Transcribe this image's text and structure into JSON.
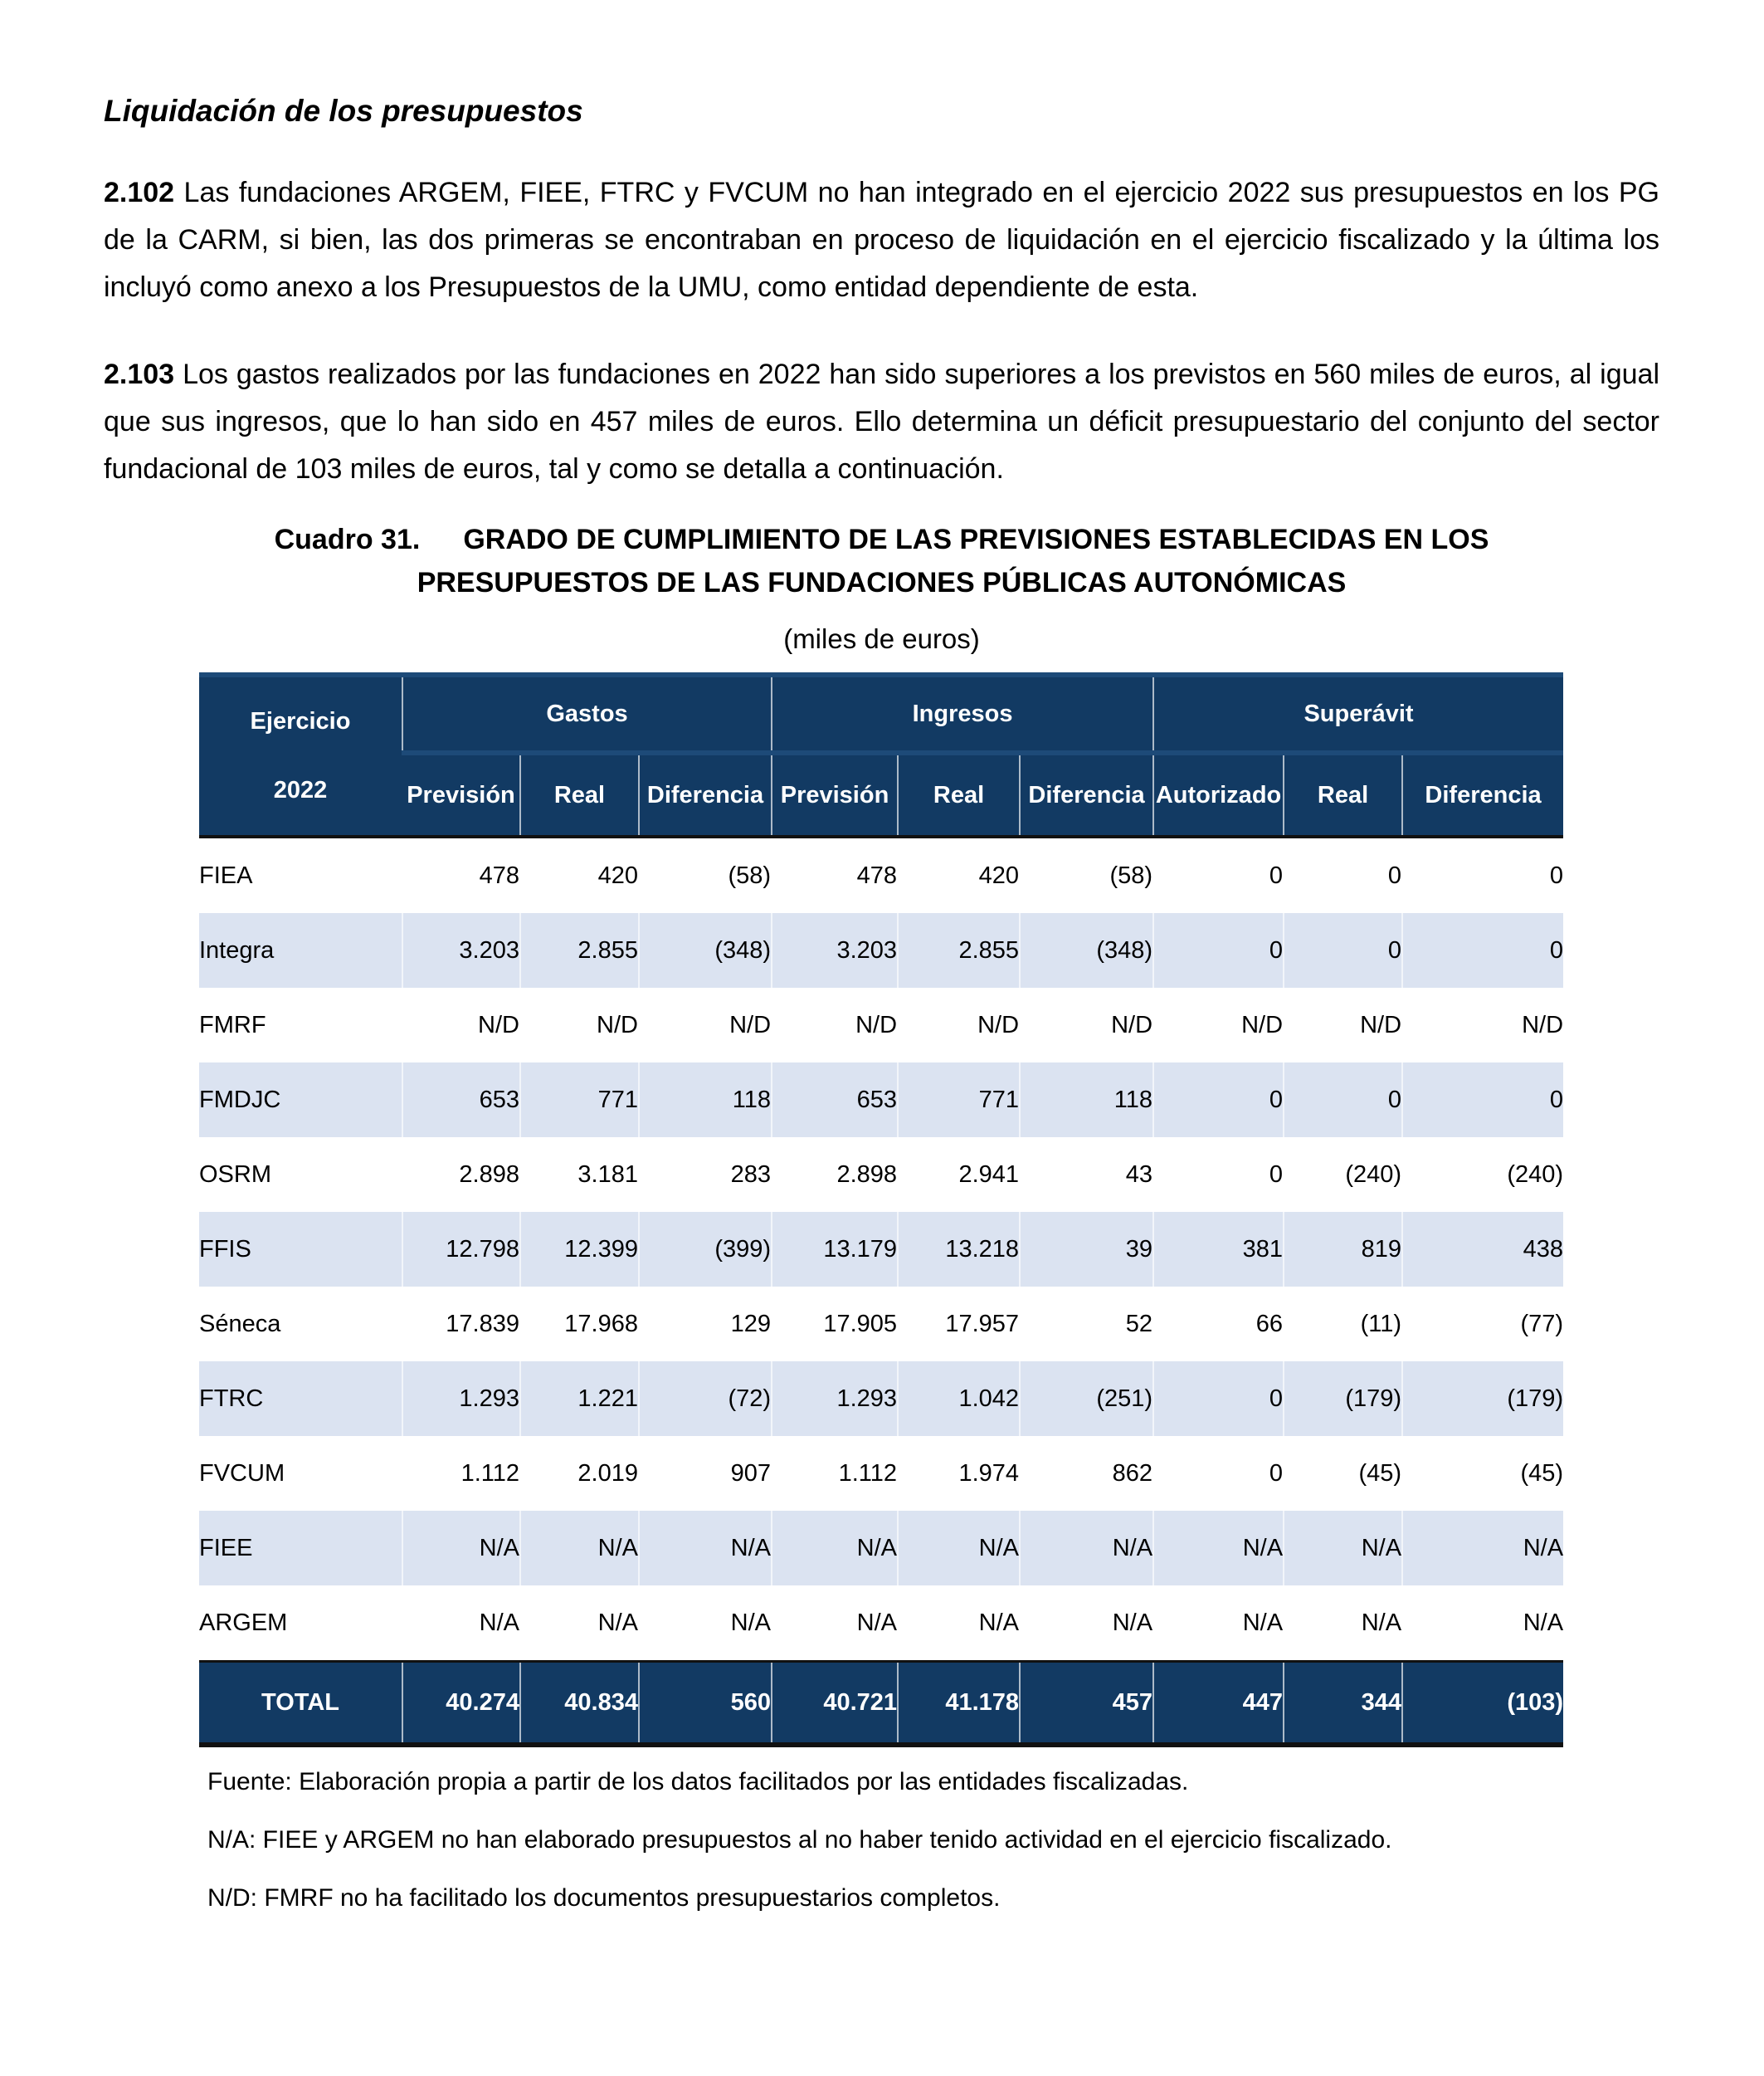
{
  "page": {
    "heading": "Liquidación de los presupuestos",
    "paragraphs": [
      {
        "number": "2.102",
        "text": "Las fundaciones ARGEM, FIEE, FTRC y FVCUM no han integrado en el ejercicio 2022 sus presupuestos en los PG de la CARM, si bien, las dos primeras se encontraban en proceso de liquidación en el ejercicio fiscalizado y la última los incluyó como anexo a los Presupuestos de la UMU, como entidad dependiente de esta."
      },
      {
        "number": "2.103",
        "text": "Los gastos realizados por las fundaciones en 2022 han sido superiores a los previstos en 560 miles de euros, al igual que sus ingresos, que lo han sido en 457 miles de euros. Ello determina un déficit presupuestario del conjunto del sector fundacional de 103 miles de euros, tal y como se detalla a continuación."
      }
    ],
    "table_caption": {
      "label": "Cuadro 31.",
      "line1": "GRADO DE CUMPLIMIENTO DE LAS PREVISIONES ESTABLECIDAS EN LOS",
      "line2": "PRESUPUESTOS DE LAS FUNDACIONES PÚBLICAS AUTONÓMICAS"
    },
    "units_note": "(miles de euros)"
  },
  "table": {
    "corner_header": [
      "Ejercicio",
      "2022"
    ],
    "groups": [
      {
        "label": "Gastos",
        "columns": [
          "Previsión",
          "Real",
          "Diferencia"
        ]
      },
      {
        "label": "Ingresos",
        "columns": [
          "Previsión",
          "Real",
          "Diferencia"
        ]
      },
      {
        "label": "Superávit",
        "columns": [
          "Autorizado",
          "Real",
          "Diferencia"
        ]
      }
    ],
    "rows": [
      {
        "entity": "FIEA",
        "values": [
          "478",
          "420",
          "(58)",
          "478",
          "420",
          "(58)",
          "0",
          "0",
          "0"
        ]
      },
      {
        "entity": "Integra",
        "values": [
          "3.203",
          "2.855",
          "(348)",
          "3.203",
          "2.855",
          "(348)",
          "0",
          "0",
          "0"
        ]
      },
      {
        "entity": "FMRF",
        "values": [
          "N/D",
          "N/D",
          "N/D",
          "N/D",
          "N/D",
          "N/D",
          "N/D",
          "N/D",
          "N/D"
        ]
      },
      {
        "entity": "FMDJC",
        "values": [
          "653",
          "771",
          "118",
          "653",
          "771",
          "118",
          "0",
          "0",
          "0"
        ]
      },
      {
        "entity": "OSRM",
        "values": [
          "2.898",
          "3.181",
          "283",
          "2.898",
          "2.941",
          "43",
          "0",
          "(240)",
          "(240)"
        ]
      },
      {
        "entity": "FFIS",
        "values": [
          "12.798",
          "12.399",
          "(399)",
          "13.179",
          "13.218",
          "39",
          "381",
          "819",
          "438"
        ]
      },
      {
        "entity": "Séneca",
        "values": [
          "17.839",
          "17.968",
          "129",
          "17.905",
          "17.957",
          "52",
          "66",
          "(11)",
          "(77)"
        ]
      },
      {
        "entity": "FTRC",
        "values": [
          "1.293",
          "1.221",
          "(72)",
          "1.293",
          "1.042",
          "(251)",
          "0",
          "(179)",
          "(179)"
        ]
      },
      {
        "entity": "FVCUM",
        "values": [
          "1.112",
          "2.019",
          "907",
          "1.112",
          "1.974",
          "862",
          "0",
          "(45)",
          "(45)"
        ]
      },
      {
        "entity": "FIEE",
        "values": [
          "N/A",
          "N/A",
          "N/A",
          "N/A",
          "N/A",
          "N/A",
          "N/A",
          "N/A",
          "N/A"
        ]
      },
      {
        "entity": "ARGEM",
        "values": [
          "N/A",
          "N/A",
          "N/A",
          "N/A",
          "N/A",
          "N/A",
          "N/A",
          "N/A",
          "N/A"
        ]
      }
    ],
    "total": {
      "label": "TOTAL",
      "values": [
        "40.274",
        "40.834",
        "560",
        "40.721",
        "41.178",
        "457",
        "447",
        "344",
        "(103)"
      ]
    }
  },
  "footnotes": [
    "Fuente: Elaboración propia a partir de los datos facilitados por las entidades fiscalizadas.",
    "N/A: FIEE y ARGEM no han elaborado presupuestos al no haber tenido actividad en el ejercicio fiscalizado.",
    "N/D: FMRF no ha facilitado los documentos presupuestarios completos."
  ],
  "colors": {
    "header_bg": "#123a63",
    "stripe_bg": "#dbe3f1",
    "total_bg": "#123a63",
    "header_text": "#ffffff",
    "rule_black": "#111111",
    "rule_white": "#ffffff"
  }
}
